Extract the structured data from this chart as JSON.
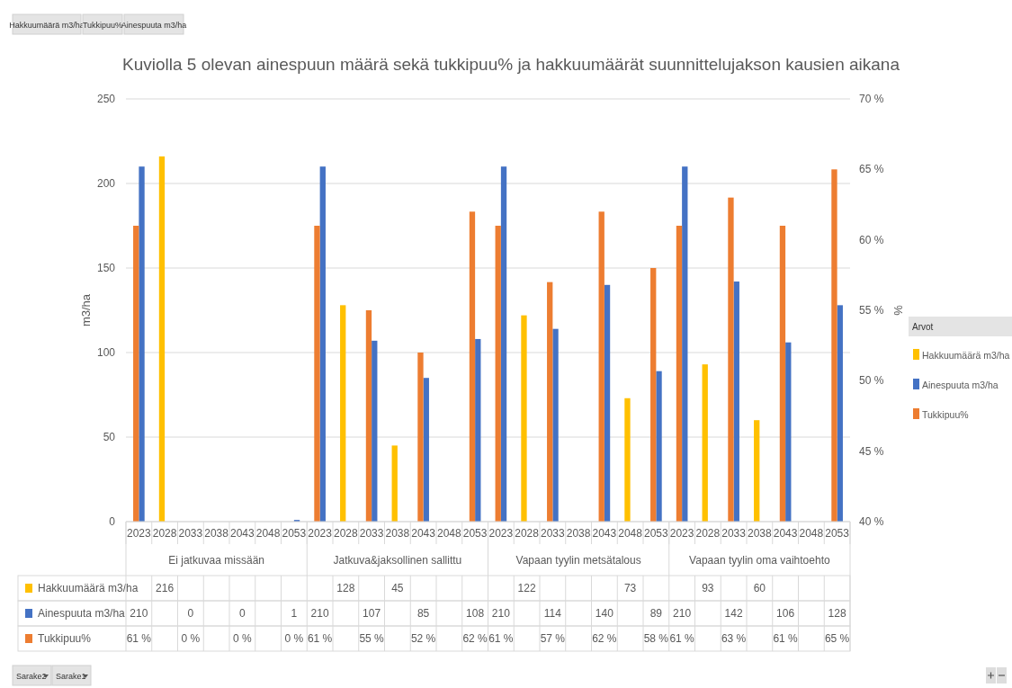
{
  "chart_data": {
    "type": "bar",
    "title": "Kuviolla 5 olevan ainespuun määrä sekä tukkipuu% ja hakkuumäärät suunnittelujakson kausien aikana",
    "categories": [
      "2023",
      "2028",
      "2033",
      "2038",
      "2043",
      "2048",
      "2053",
      "2023",
      "2028",
      "2033",
      "2038",
      "2043",
      "2048",
      "2053",
      "2023",
      "2028",
      "2033",
      "2038",
      "2043",
      "2048",
      "2053",
      "2023",
      "2028",
      "2033",
      "2038",
      "2043",
      "2048",
      "2053"
    ],
    "series": [
      {
        "name": "Hakkuumäärä m3/ha",
        "color": "#ffc000",
        "values": [
          null,
          216,
          null,
          null,
          null,
          null,
          null,
          null,
          128,
          null,
          45,
          null,
          null,
          null,
          null,
          122,
          null,
          null,
          null,
          73,
          null,
          null,
          93,
          null,
          60,
          null,
          null,
          null
        ],
        "value_labels": [
          null,
          "216",
          null,
          null,
          null,
          null,
          null,
          null,
          "128",
          null,
          "45",
          null,
          null,
          null,
          null,
          "122",
          null,
          null,
          null,
          "73",
          null,
          null,
          "93",
          null,
          "60",
          null,
          null,
          null
        ]
      },
      {
        "name": "Ainespuuta m3/ha",
        "color": "#4472c4",
        "values": [
          210,
          null,
          0,
          null,
          0,
          null,
          1,
          210,
          null,
          107,
          null,
          85,
          null,
          108,
          210,
          null,
          114,
          null,
          140,
          null,
          89,
          210,
          null,
          142,
          null,
          106,
          null,
          128
        ],
        "value_labels": [
          "210",
          null,
          "0",
          null,
          "0",
          null,
          "1",
          "210",
          null,
          "107",
          null,
          "85",
          null,
          "108",
          "210",
          null,
          "114",
          null,
          "140",
          null,
          "89",
          "210",
          null,
          "142",
          null,
          "106",
          null,
          "128"
        ]
      },
      {
        "name": "Tukkipuu%",
        "color": "#ed7d31",
        "axis": "y2",
        "values": [
          61,
          null,
          null,
          null,
          null,
          null,
          null,
          61,
          null,
          55,
          null,
          52,
          null,
          62,
          61,
          null,
          57,
          null,
          62,
          null,
          58,
          61,
          null,
          63,
          null,
          61,
          null,
          65
        ],
        "value_labels": [
          "61 %",
          null,
          "0 %",
          null,
          "0 %",
          null,
          "0 %",
          "61 %",
          null,
          "55 %",
          null,
          "52 %",
          null,
          "62 %",
          "61 %",
          null,
          "57 %",
          null,
          "62 %",
          null,
          "58 %",
          "61 %",
          null,
          "63 %",
          null,
          "61 %",
          null,
          "65 %"
        ]
      }
    ],
    "ylim": [
      0,
      250
    ],
    "yticks": [
      0,
      50,
      100,
      150,
      200,
      250
    ],
    "y2lim": [
      40,
      70
    ],
    "y2ticks": [
      {
        "value": 40,
        "label": "40 %"
      },
      {
        "value": 45,
        "label": "45 %"
      },
      {
        "value": 50,
        "label": "50 %"
      },
      {
        "value": 55,
        "label": "55 %"
      },
      {
        "value": 60,
        "label": "60 %"
      },
      {
        "value": 65,
        "label": "65 %"
      },
      {
        "value": 70,
        "label": "70 %"
      }
    ],
    "ylabel": "m3/ha",
    "y2label": "%",
    "legend": "right",
    "legend_title": "Arvot",
    "grid": "y",
    "annotations": [
      "Ei jatkuvaa missään",
      "Jatkuva&jaksollinen sallittu",
      "Vapaan tyylin metsätalous",
      "Vapaan tyylin oma vaihtoehto",
      "Hakkuumäärä m3/ha",
      "Tukkipuu%",
      "Ainespuuta m3/ha",
      "Sarake2",
      "Sarake1"
    ]
  }
}
